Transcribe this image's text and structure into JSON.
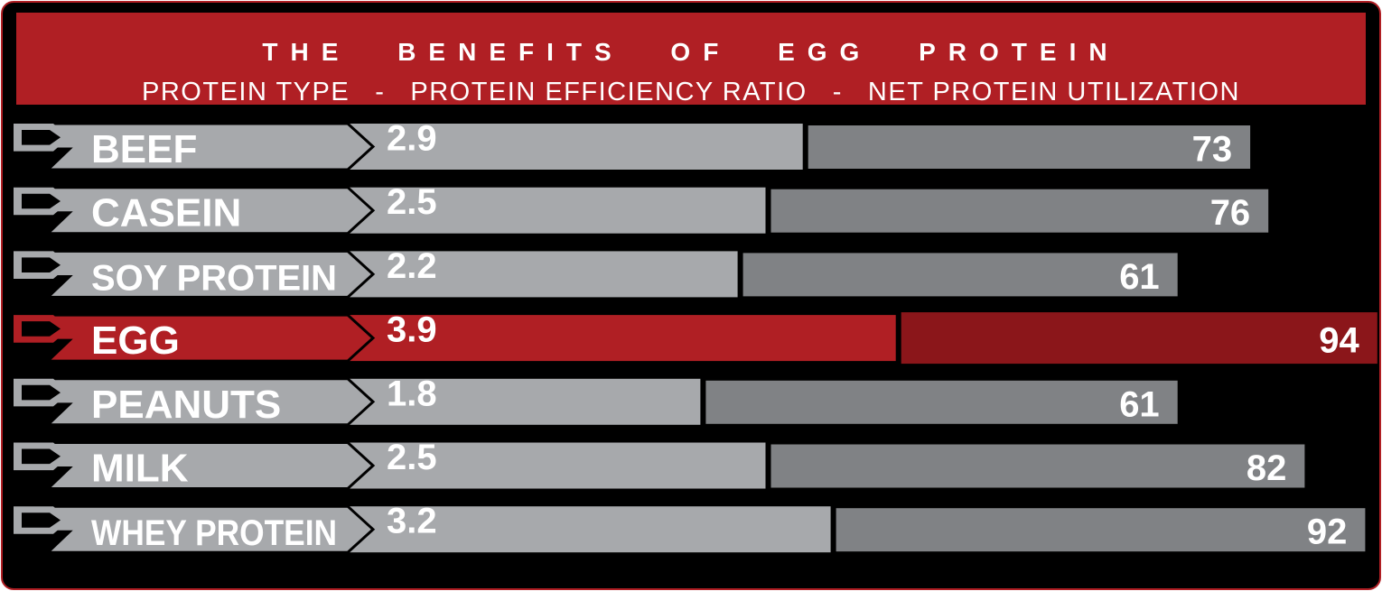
{
  "chart_data": {
    "type": "bar",
    "title": "THE BENEFITS OF EGG PROTEIN",
    "columns": [
      "PROTEIN TYPE",
      "PROTEIN EFFICIENCY RATIO",
      "NET PROTEIN UTILIZATION"
    ],
    "separator": "-",
    "categories": [
      "BEEF",
      "CASEIN",
      "SOY PROTEIN",
      "EGG",
      "PEANUTS",
      "MILK",
      "WHEY PROTEIN"
    ],
    "series": [
      {
        "name": "PROTEIN EFFICIENCY RATIO",
        "values": [
          2.9,
          2.5,
          2.2,
          3.9,
          1.8,
          2.5,
          3.2
        ],
        "labels": [
          "2.9",
          "2.5",
          "2.2",
          "3.9",
          "1.8",
          "2.5",
          "3.2"
        ]
      },
      {
        "name": "NET PROTEIN UTILIZATION",
        "values": [
          73,
          76,
          61,
          94,
          61,
          82,
          92
        ]
      }
    ],
    "highlight": "EGG",
    "colors": {
      "per": "#a7a9ac",
      "npu": "#808285",
      "highlight_per": "#b01f24",
      "highlight_npu": "#8b161a",
      "background": "#000000"
    }
  }
}
